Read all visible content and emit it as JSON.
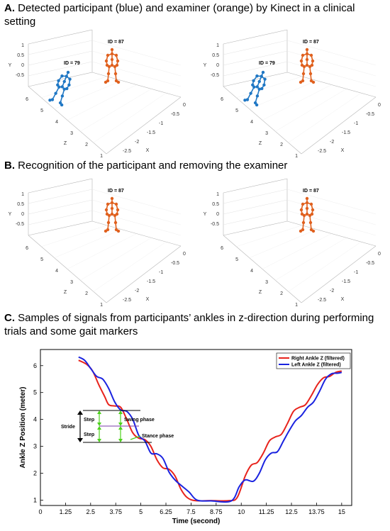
{
  "panels": {
    "a": {
      "letter": "A.",
      "text": "Detected participant (blue) and examiner (orange) by Kinect in a clinical setting"
    },
    "b": {
      "letter": "B.",
      "text": "Recognition of the participant and removing the examiner"
    },
    "c": {
      "letter": "C.",
      "text": "Samples of signals from participants’ ankles in z-direction during performing trials and some gait markers"
    }
  },
  "skeleton_plots": {
    "axis_names": {
      "x": "X",
      "y": "Y",
      "z": "Z"
    },
    "y_ticks": [
      "1",
      "0.5",
      "0",
      "-0.5"
    ],
    "z_ticks": [
      "6",
      "5",
      "4",
      "3",
      "2",
      "1"
    ],
    "x_ticks": [
      "0",
      "-0.5",
      "-1",
      "-1.5",
      "-2",
      "-2.5"
    ],
    "id_participant": "ID = 79",
    "id_examiner": "ID = 87",
    "colors": {
      "participant": "#1f77c4",
      "examiner": "#e0611f"
    }
  },
  "chart_data": {
    "type": "line",
    "xlabel": "Time (second)",
    "ylabel": "Ankle Z Position (meter)",
    "xlim": [
      0,
      15.5
    ],
    "ylim": [
      0.8,
      6.6
    ],
    "x_ticks": [
      "0",
      "1.25",
      "2.5",
      "3.75",
      "5",
      "6.25",
      "7.5",
      "8.75",
      "10",
      "11.25",
      "12.5",
      "13.75",
      "15"
    ],
    "y_ticks": [
      "1",
      "2",
      "3",
      "4",
      "5",
      "6"
    ],
    "legend_position": "top-right",
    "series": [
      {
        "name": "Right Ankle Z (filtered)",
        "color": "#e8231c",
        "points": [
          [
            1.9,
            6.2
          ],
          [
            2.3,
            6.05
          ],
          [
            2.6,
            5.8
          ],
          [
            2.9,
            5.3
          ],
          [
            3.2,
            4.85
          ],
          [
            3.4,
            4.55
          ],
          [
            3.7,
            4.5
          ],
          [
            4.0,
            4.45
          ],
          [
            4.3,
            4.0
          ],
          [
            4.6,
            3.5
          ],
          [
            4.9,
            3.3
          ],
          [
            5.2,
            3.25
          ],
          [
            5.5,
            3.0
          ],
          [
            5.8,
            2.5
          ],
          [
            6.1,
            2.2
          ],
          [
            6.4,
            2.15
          ],
          [
            6.7,
            1.9
          ],
          [
            7.0,
            1.4
          ],
          [
            7.3,
            1.1
          ],
          [
            7.7,
            0.98
          ],
          [
            8.5,
            0.98
          ],
          [
            9.4,
            0.98
          ],
          [
            9.8,
            1.1
          ],
          [
            10.2,
            1.9
          ],
          [
            10.5,
            2.3
          ],
          [
            10.8,
            2.4
          ],
          [
            11.1,
            2.75
          ],
          [
            11.4,
            3.2
          ],
          [
            11.7,
            3.35
          ],
          [
            12.0,
            3.45
          ],
          [
            12.3,
            3.85
          ],
          [
            12.6,
            4.3
          ],
          [
            12.9,
            4.45
          ],
          [
            13.2,
            4.55
          ],
          [
            13.5,
            4.9
          ],
          [
            13.8,
            5.3
          ],
          [
            14.1,
            5.55
          ],
          [
            14.4,
            5.6
          ],
          [
            14.7,
            5.75
          ],
          [
            15.0,
            5.8
          ]
        ]
      },
      {
        "name": "Left Ankle Z (filtered)",
        "color": "#1a23e0",
        "points": [
          [
            1.9,
            6.32
          ],
          [
            2.2,
            6.2
          ],
          [
            2.5,
            5.9
          ],
          [
            2.8,
            5.6
          ],
          [
            3.1,
            5.5
          ],
          [
            3.4,
            5.15
          ],
          [
            3.7,
            4.65
          ],
          [
            4.0,
            4.35
          ],
          [
            4.3,
            4.3
          ],
          [
            4.6,
            4.0
          ],
          [
            4.9,
            3.4
          ],
          [
            5.2,
            3.2
          ],
          [
            5.5,
            2.75
          ],
          [
            5.8,
            2.72
          ],
          [
            6.1,
            2.55
          ],
          [
            6.4,
            2.05
          ],
          [
            6.7,
            1.75
          ],
          [
            7.0,
            1.55
          ],
          [
            7.4,
            1.3
          ],
          [
            7.8,
            1.0
          ],
          [
            8.5,
            0.97
          ],
          [
            9.5,
            0.97
          ],
          [
            9.9,
            1.5
          ],
          [
            10.2,
            1.75
          ],
          [
            10.6,
            1.7
          ],
          [
            10.9,
            2.0
          ],
          [
            11.2,
            2.5
          ],
          [
            11.5,
            2.75
          ],
          [
            11.8,
            2.8
          ],
          [
            12.1,
            3.2
          ],
          [
            12.4,
            3.6
          ],
          [
            12.7,
            3.95
          ],
          [
            13.0,
            4.15
          ],
          [
            13.3,
            4.45
          ],
          [
            13.6,
            4.65
          ],
          [
            13.9,
            5.05
          ],
          [
            14.2,
            5.5
          ],
          [
            14.5,
            5.7
          ],
          [
            14.8,
            5.72
          ],
          [
            15.0,
            5.75
          ]
        ]
      }
    ],
    "annotations": {
      "stride": "Stride",
      "step1": "Step",
      "step2": "Step",
      "swing": "Swing phase",
      "stance": "Stance phase"
    }
  }
}
